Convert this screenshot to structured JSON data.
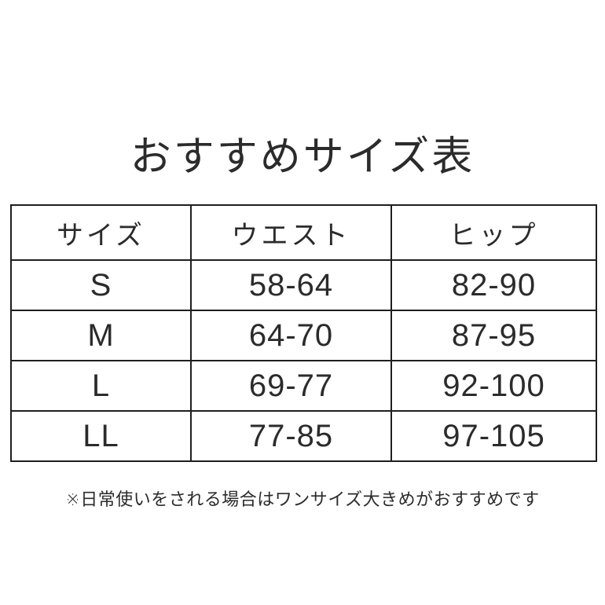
{
  "title": "おすすめサイズ表",
  "table": {
    "headers": [
      "サイズ",
      "ウエスト",
      "ヒップ"
    ],
    "rows": [
      {
        "size": "S",
        "waist": "58-64",
        "hip": "82-90"
      },
      {
        "size": "M",
        "waist": "64-70",
        "hip": "87-95"
      },
      {
        "size": "L",
        "waist": "69-77",
        "hip": "92-100"
      },
      {
        "size": "LL",
        "waist": "77-85",
        "hip": "97-105"
      }
    ]
  },
  "note": "※日常使いをされる場合はワンサイズ大きめがおすすめです",
  "colors": {
    "background": "#ffffff",
    "text": "#2b2b2b",
    "border": "#1e1e1e"
  },
  "chart_data": {
    "type": "table",
    "title": "おすすめサイズ表",
    "columns": [
      "サイズ",
      "ウエスト",
      "ヒップ"
    ],
    "rows": [
      [
        "S",
        "58-64",
        "82-90"
      ],
      [
        "M",
        "64-70",
        "87-95"
      ],
      [
        "L",
        "69-77",
        "92-100"
      ],
      [
        "LL",
        "77-85",
        "97-105"
      ]
    ],
    "footnote": "※日常使いをされる場合はワンサイズ大きめがおすすめです"
  }
}
